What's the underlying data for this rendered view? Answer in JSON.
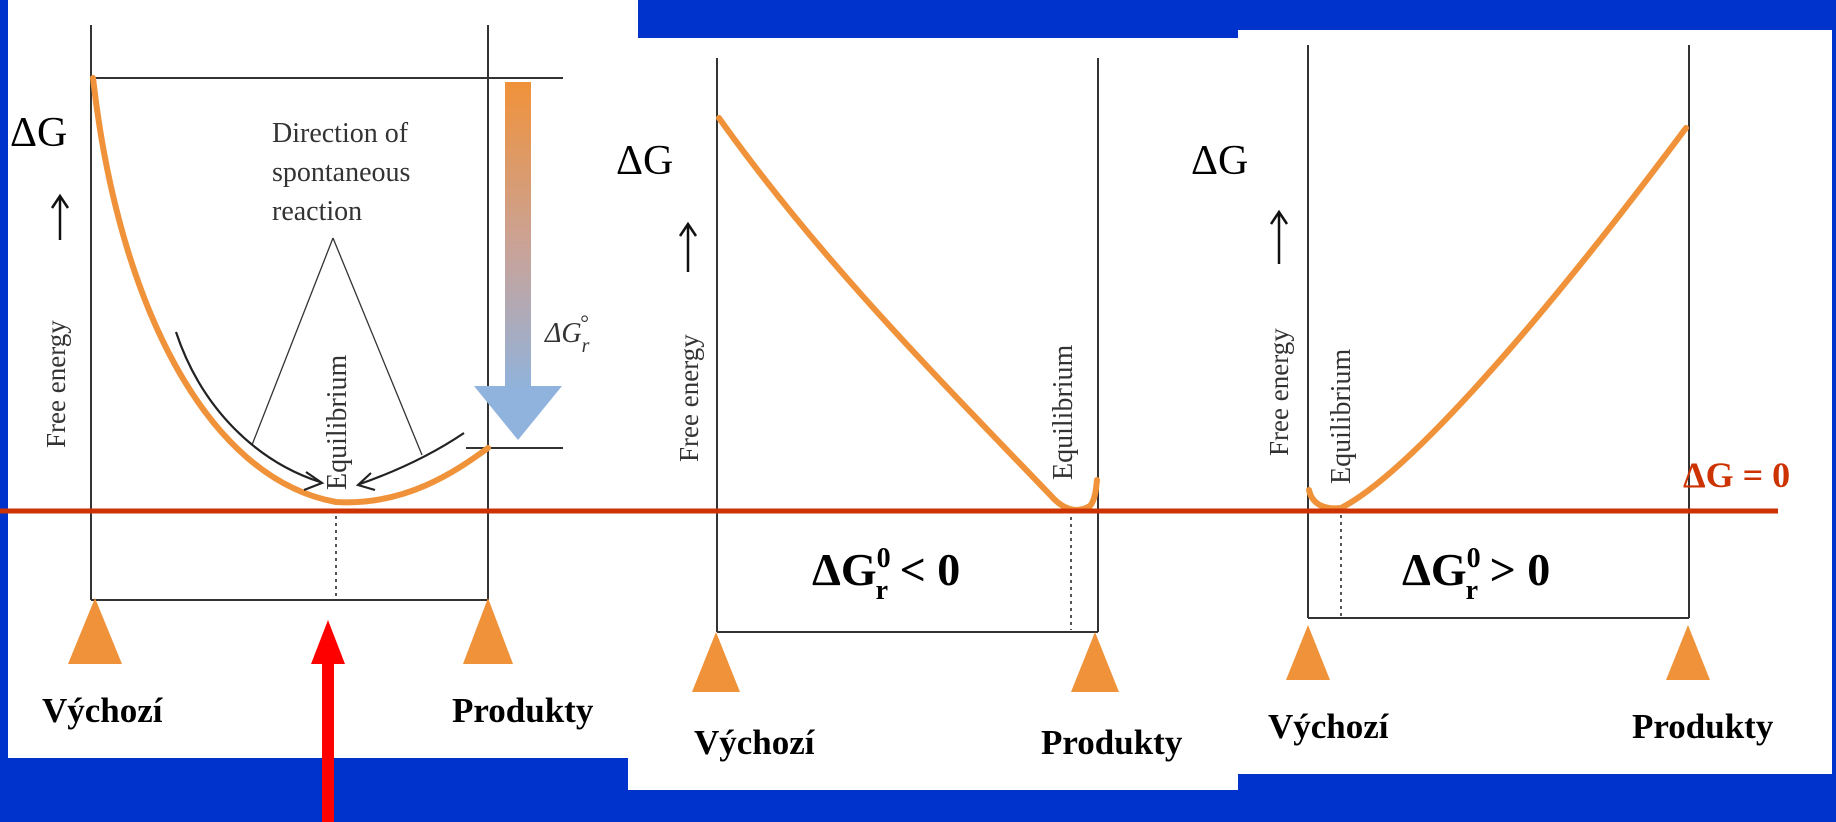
{
  "colors": {
    "background": "#0033cc",
    "panel": "#ffffff",
    "curve": "#f0923a",
    "baseline": "#cc3300",
    "zero_label": "#cc3300",
    "pointer": "#ff0000",
    "axis": "#333333"
  },
  "baseline_label": "ΔG = 0",
  "panel1": {
    "dg_label": "ΔG",
    "free_energy_label": "Free energy",
    "direction_line1": "Direction of",
    "direction_line2": "spontaneous",
    "direction_line3": "reaction",
    "equilibrium_label": "Equilibrium",
    "dgr_label": "ΔG",
    "dgr_sub": "r",
    "dgr_sup": "°",
    "left_label": "Výchozí",
    "right_label": "Produkty"
  },
  "panel2": {
    "dg_label": "ΔG",
    "free_energy_label": "Free energy",
    "equilibrium_label": "Equilibrium",
    "condition_main": "ΔG",
    "condition_sup": "0",
    "condition_sub": "r",
    "condition_rest": " < 0",
    "left_label": "Výchozí",
    "right_label": "Produkty"
  },
  "panel3": {
    "dg_label": "ΔG",
    "free_energy_label": "Free energy",
    "equilibrium_label": "Equilibrium",
    "condition_main": "ΔG",
    "condition_sup": "0",
    "condition_sub": "r",
    "condition_rest": " > 0",
    "left_label": "Výchozí",
    "right_label": "Produkty"
  }
}
